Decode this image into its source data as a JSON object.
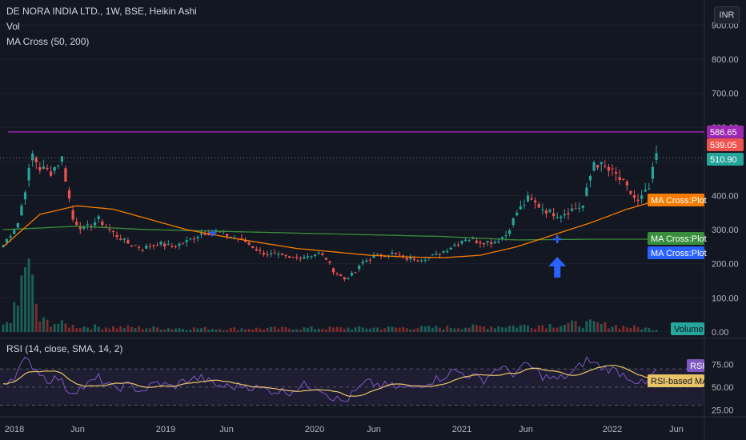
{
  "header": {
    "title": "DE NORA INDIA LTD., 1W, BSE, Heikin Ashi",
    "indicator_vol": "Vol",
    "indicator_ma": "MA Cross (50, 200)",
    "currency": "INR"
  },
  "price_axis": {
    "ticks": [
      "900.00",
      "800.00",
      "700.00",
      "600.00",
      "500.00",
      "400.00",
      "300.00",
      "200.00",
      "100.00",
      "0.00"
    ]
  },
  "rsi_axis": {
    "ticks": [
      "75.00",
      "50.00",
      "25.00"
    ]
  },
  "time_axis": {
    "ticks": [
      "2018",
      "Jun",
      "2019",
      "Jun",
      "2020",
      "Jun",
      "2021",
      "Jun",
      "2022",
      "Jun"
    ]
  },
  "price_tags": {
    "hline": "586.65",
    "last": "539.05",
    "dotted": "510.90",
    "ma_fast": "MA Cross:Plot",
    "ma_slow": "MA Cross:Plot",
    "cross": "MA Cross:Plot",
    "volume": "Volume"
  },
  "rsi_panel": {
    "title": "RSI (14, close, SMA, 14, 2)",
    "tag_rsi": "RSI",
    "tag_ma": "RSI-based MA"
  },
  "colors": {
    "up": "#26a69a",
    "down": "#ef5350",
    "hline": "#9c27b0",
    "ma_fast": "#f57c00",
    "ma_slow": "#388e3c",
    "cross": "#2962ff",
    "rsi": "#7e57c2",
    "rsi_ma": "#e8c468"
  },
  "chart_data": {
    "type": "candlestick",
    "price_ylim": [
      0,
      950
    ],
    "rsi_ylim": [
      20,
      85
    ],
    "hline_price": 586.65,
    "last_price": 539.05,
    "dotted_price": 510.9,
    "anchors": {
      "price_close": [
        [
          0,
          255
        ],
        [
          4,
          320
        ],
        [
          8,
          520
        ],
        [
          10,
          480
        ],
        [
          13,
          470
        ],
        [
          16,
          510
        ],
        [
          19,
          330
        ],
        [
          22,
          300
        ],
        [
          26,
          330
        ],
        [
          30,
          290
        ],
        [
          34,
          260
        ],
        [
          38,
          245
        ],
        [
          42,
          260
        ],
        [
          46,
          250
        ],
        [
          50,
          265
        ],
        [
          54,
          290
        ],
        [
          58,
          295
        ],
        [
          62,
          280
        ],
        [
          66,
          265
        ],
        [
          70,
          235
        ],
        [
          74,
          225
        ],
        [
          78,
          215
        ],
        [
          82,
          222
        ],
        [
          86,
          230
        ],
        [
          88,
          215
        ],
        [
          90,
          180
        ],
        [
          93,
          155
        ],
        [
          96,
          175
        ],
        [
          98,
          205
        ],
        [
          102,
          225
        ],
        [
          106,
          230
        ],
        [
          110,
          215
        ],
        [
          114,
          215
        ],
        [
          118,
          225
        ],
        [
          122,
          250
        ],
        [
          126,
          275
        ],
        [
          130,
          265
        ],
        [
          134,
          265
        ],
        [
          137,
          285
        ],
        [
          140,
          350
        ],
        [
          143,
          390
        ],
        [
          146,
          370
        ],
        [
          149,
          350
        ],
        [
          152,
          345
        ],
        [
          155,
          360
        ],
        [
          158,
          370
        ],
        [
          161,
          500
        ],
        [
          164,
          480
        ],
        [
          167,
          460
        ],
        [
          170,
          420
        ],
        [
          173,
          380
        ],
        [
          176,
          420
        ],
        [
          178,
          520
        ]
      ],
      "ma_fast": [
        [
          0,
          250
        ],
        [
          10,
          345
        ],
        [
          20,
          370
        ],
        [
          30,
          360
        ],
        [
          40,
          330
        ],
        [
          50,
          300
        ],
        [
          60,
          280
        ],
        [
          70,
          262
        ],
        [
          80,
          245
        ],
        [
          90,
          235
        ],
        [
          100,
          225
        ],
        [
          110,
          220
        ],
        [
          120,
          218
        ],
        [
          130,
          225
        ],
        [
          140,
          250
        ],
        [
          150,
          285
        ],
        [
          160,
          320
        ],
        [
          170,
          360
        ],
        [
          178,
          385
        ]
      ],
      "ma_slow": [
        [
          0,
          300
        ],
        [
          20,
          310
        ],
        [
          40,
          300
        ],
        [
          60,
          295
        ],
        [
          80,
          290
        ],
        [
          100,
          285
        ],
        [
          120,
          280
        ],
        [
          140,
          270
        ],
        [
          160,
          272
        ],
        [
          178,
          272
        ]
      ],
      "rsi": [
        [
          0,
          55
        ],
        [
          3,
          62
        ],
        [
          6,
          80
        ],
        [
          9,
          70
        ],
        [
          12,
          58
        ],
        [
          15,
          60
        ],
        [
          18,
          45
        ],
        [
          22,
          50
        ],
        [
          26,
          60
        ],
        [
          30,
          48
        ],
        [
          34,
          52
        ],
        [
          38,
          46
        ],
        [
          42,
          55
        ],
        [
          46,
          50
        ],
        [
          50,
          58
        ],
        [
          54,
          60
        ],
        [
          58,
          52
        ],
        [
          62,
          50
        ],
        [
          66,
          52
        ],
        [
          70,
          48
        ],
        [
          74,
          46
        ],
        [
          78,
          45
        ],
        [
          82,
          52
        ],
        [
          86,
          50
        ],
        [
          90,
          38
        ],
        [
          93,
          34
        ],
        [
          96,
          45
        ],
        [
          99,
          55
        ],
        [
          103,
          52
        ],
        [
          107,
          50
        ],
        [
          111,
          48
        ],
        [
          115,
          55
        ],
        [
          119,
          60
        ],
        [
          123,
          68
        ],
        [
          127,
          63
        ],
        [
          131,
          58
        ],
        [
          135,
          72
        ],
        [
          139,
          65
        ],
        [
          143,
          75
        ],
        [
          147,
          62
        ],
        [
          151,
          58
        ],
        [
          155,
          65
        ],
        [
          159,
          80
        ],
        [
          163,
          72
        ],
        [
          167,
          68
        ],
        [
          171,
          60
        ],
        [
          175,
          52
        ],
        [
          178,
          68
        ]
      ],
      "volume": [
        [
          0,
          20
        ],
        [
          4,
          90
        ],
        [
          6,
          260
        ],
        [
          8,
          160
        ],
        [
          10,
          40
        ],
        [
          20,
          20
        ],
        [
          40,
          15
        ],
        [
          60,
          12
        ],
        [
          90,
          14
        ],
        [
          120,
          16
        ],
        [
          140,
          22
        ],
        [
          160,
          30
        ],
        [
          178,
          10
        ]
      ]
    },
    "candle_count": 179,
    "cross_index": 151,
    "cross_price": 272
  }
}
